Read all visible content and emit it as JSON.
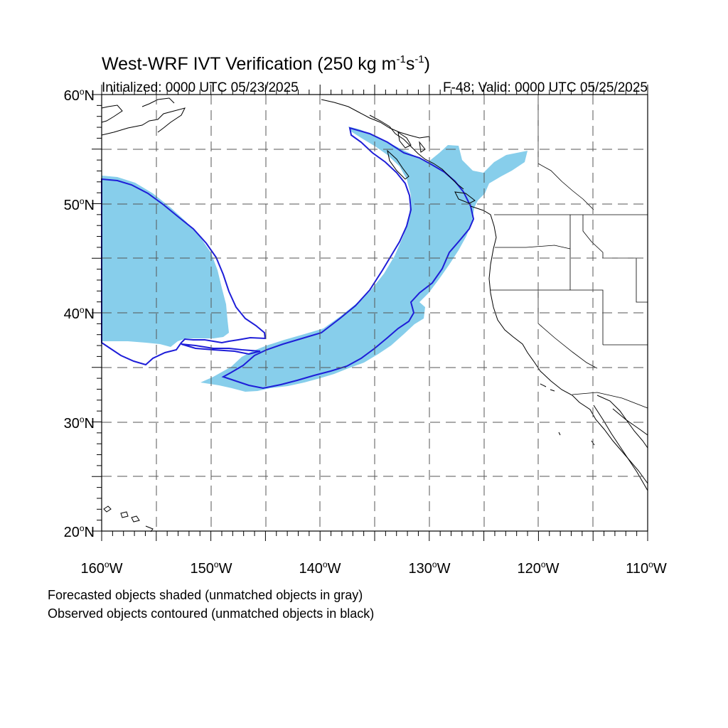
{
  "title": {
    "main": "West-WRF IVT Verification (250 kg m",
    "exp1": "-1",
    "mid": "s",
    "exp2": "-1",
    "end": ")"
  },
  "subtitle_left": "Initialized: 0000 UTC 05/23/2025",
  "subtitle_right": "F-48: Valid: 0000 UTC 05/25/2025",
  "lat_labels": [
    {
      "num": "60",
      "deg": "o",
      "hem": "N"
    },
    {
      "num": "50",
      "deg": "o",
      "hem": "N"
    },
    {
      "num": "40",
      "deg": "o",
      "hem": "N"
    },
    {
      "num": "30",
      "deg": "o",
      "hem": "N"
    },
    {
      "num": "20",
      "deg": "o",
      "hem": "N"
    }
  ],
  "lon_labels": [
    {
      "num": "160",
      "deg": "o",
      "hem": "W"
    },
    {
      "num": "150",
      "deg": "o",
      "hem": "W"
    },
    {
      "num": "140",
      "deg": "o",
      "hem": "W"
    },
    {
      "num": "130",
      "deg": "o",
      "hem": "W"
    },
    {
      "num": "120",
      "deg": "o",
      "hem": "W"
    },
    {
      "num": "110",
      "deg": "o",
      "hem": "W"
    }
  ],
  "legend": {
    "line1": "Forecasted objects shaded (unmatched objects in gray)",
    "line2": "Observed objects contoured (unmatched objects in black)"
  },
  "colors": {
    "forecast_fill": "#87ceeb",
    "observed_contour": "#1e1ed8",
    "coastline": "#000000",
    "grid": "#555555"
  }
}
